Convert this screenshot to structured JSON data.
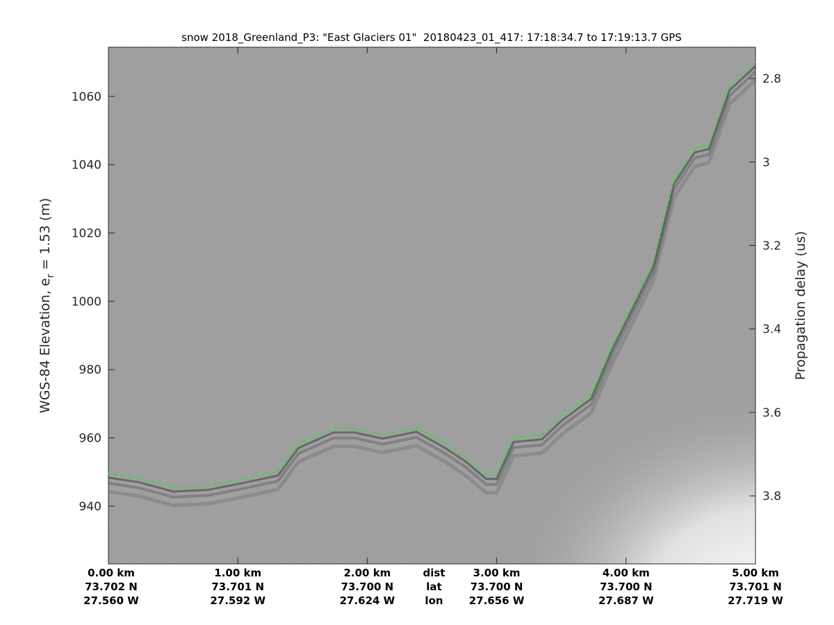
{
  "chart_data": {
    "type": "line",
    "title": "snow 2018_Greenland_P3: \"East Glaciers 01\"  20180423_01_417: 17:18:34.7 to 17:19:13.7 GPS",
    "ylabel_left": "WGS-84 Elevation, e",
    "ylabel_left_subscript": "r",
    "ylabel_left_suffix": " = 1.53 (m)",
    "ylabel_right": "Propagation delay (us)",
    "xlim": [
      0,
      5
    ],
    "ylim_left": [
      923.1,
      1074.4
    ],
    "ylim_right": [
      2.725,
      3.963
    ],
    "right_axis_reversed": true,
    "grid": false,
    "background": "radar echogram (grayscale)",
    "colors": {
      "surface_trace": "#33dd33",
      "background": "#9a9a9a"
    },
    "yticks_left": [
      940,
      960,
      980,
      1000,
      1020,
      1040,
      1060
    ],
    "yticks_right": [
      "2.8",
      "3",
      "3.2",
      "3.4",
      "3.6",
      "3.8"
    ],
    "yticks_right_values": [
      2.8,
      3.0,
      3.2,
      3.4,
      3.6,
      3.8
    ],
    "xticks": [
      {
        "value": 0,
        "dist": "0.00 km",
        "lat": "73.702 N",
        "lon": "27.560 W"
      },
      {
        "value": 1,
        "dist": "1.00 km",
        "lat": "73.701 N",
        "lon": "27.592 W"
      },
      {
        "value": 2,
        "dist": "2.00 km",
        "lat": "73.700 N",
        "lon": "27.624 W"
      },
      {
        "value": 3,
        "dist": "3.00 km",
        "lat": "73.700 N",
        "lon": "27.656 W"
      },
      {
        "value": 4,
        "dist": "4.00 km",
        "lat": "73.700 N",
        "lon": "27.687 W"
      },
      {
        "value": 5,
        "dist": "5.00 km",
        "lat": "73.701 N",
        "lon": "27.719 W"
      }
    ],
    "row_headers": {
      "dist": "dist",
      "lat": "lat",
      "lon": "lon"
    },
    "row_header_at": 2.5,
    "series": [
      {
        "style": "dashed",
        "x": [
          0,
          0.24,
          0.5,
          0.77,
          1.04,
          1.31,
          1.47,
          1.74,
          1.9,
          2.12,
          2.38,
          2.6,
          2.76,
          2.92,
          3.0,
          3.13,
          3.35,
          3.51,
          3.73,
          3.89,
          4.05,
          4.21,
          4.37,
          4.53,
          4.64,
          4.8,
          5.0
        ],
        "y": [
          949.6,
          948.2,
          945.5,
          946,
          948,
          950.2,
          958.3,
          962.8,
          962.8,
          961,
          963,
          958.3,
          954.3,
          949.2,
          949.2,
          960,
          960.8,
          966.5,
          972.6,
          986.8,
          999,
          1011.2,
          1035.6,
          1044.8,
          1045.8,
          1063,
          1070.1
        ]
      }
    ]
  }
}
